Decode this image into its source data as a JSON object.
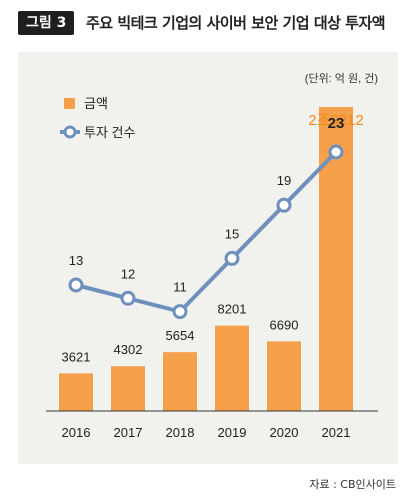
{
  "header": {
    "figure_label": "그림 3",
    "title": "주요 빅테크 기업의 사이버 보안 기업 대상 투자액"
  },
  "source": "자료 : CB인사이트",
  "colors": {
    "bar": "#f5a04a",
    "line": "#6f8fbc",
    "panel": "#f1f1ee",
    "highlight_text": "#f08a1c"
  },
  "chart_data": {
    "type": "bar",
    "title": "주요 빅테크 기업의 사이버 보안 기업 대상 투자액",
    "unit_note": "(단위: 억 원, 건)",
    "categories": [
      "2016",
      "2017",
      "2018",
      "2019",
      "2020",
      "2021"
    ],
    "series": [
      {
        "name": "금액",
        "type": "bar",
        "values": [
          3621,
          4302,
          5654,
          8201,
          6690,
          29212
        ],
        "labels": [
          "3621",
          "4302",
          "5654",
          "8201",
          "6690",
          "2조9212"
        ]
      },
      {
        "name": "투자 건수",
        "type": "line",
        "values": [
          13,
          12,
          11,
          15,
          19,
          23
        ],
        "labels": [
          "13",
          "12",
          "11",
          "15",
          "19",
          "23"
        ]
      }
    ],
    "legend_position": "top-left",
    "grid": false
  }
}
